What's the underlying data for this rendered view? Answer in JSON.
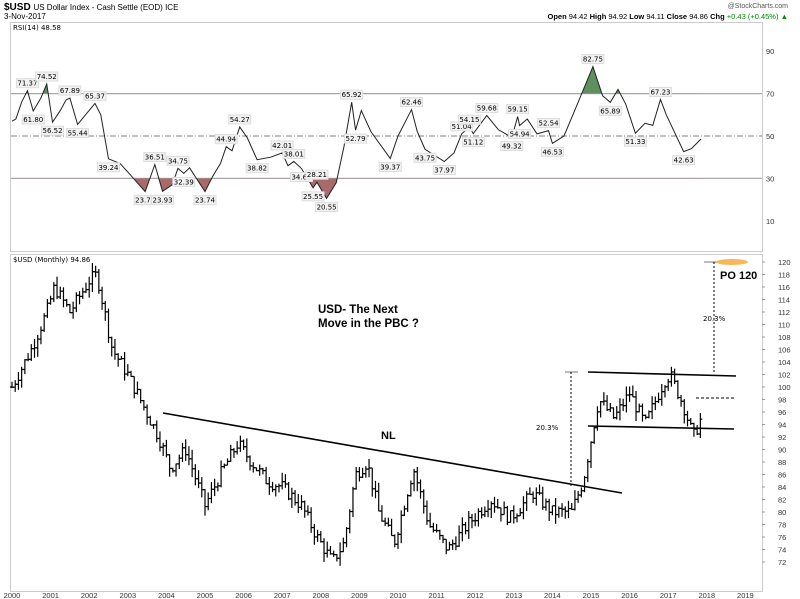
{
  "header": {
    "symbol": "$USD",
    "name": "US Dollar Index - Cash Settle (EOD) ICE",
    "date": "3-Nov-2017",
    "watermark": "@StockCharts.com",
    "open_label": "Open",
    "open": "94.42",
    "high_label": "High",
    "high": "94.92",
    "low_label": "Low",
    "low": "94.11",
    "close_label": "Close",
    "close": "94.86",
    "chg_label": "Chg",
    "chg": "+0.43 (+0.45%)"
  },
  "rsi_legend": "RSI(14) 48.58",
  "price_legend": "$USD (Monthly) 94.86",
  "annotations": {
    "title_line1": "USD- The Next",
    "title_line2": "Move in the PBC ?",
    "neckline": "NL",
    "pct_left": "20.3%",
    "pct_right": "20.3%",
    "target": "PO 120"
  },
  "colors": {
    "overbought": "#5f8f5f",
    "oversold": "#a86a6a",
    "target": "#f5b85a"
  },
  "chart_data": [
    {
      "type": "line",
      "title": "RSI(14)",
      "ylim": [
        0,
        100
      ],
      "yticks": [
        10,
        30,
        50,
        70,
        90
      ],
      "levels": [
        30,
        50,
        70
      ],
      "points": [
        [
          2000.0,
          57
        ],
        [
          2000.1,
          58
        ],
        [
          2000.25,
          66
        ],
        [
          2000.4,
          71.37
        ],
        [
          2000.55,
          61.8
        ],
        [
          2000.75,
          68
        ],
        [
          2000.9,
          74.52
        ],
        [
          2001.05,
          56.52
        ],
        [
          2001.25,
          62
        ],
        [
          2001.4,
          67
        ],
        [
          2001.5,
          67.89
        ],
        [
          2001.7,
          55.44
        ],
        [
          2001.95,
          61
        ],
        [
          2002.15,
          65.37
        ],
        [
          2002.3,
          60
        ],
        [
          2002.5,
          39.24
        ],
        [
          2002.8,
          37
        ],
        [
          2003.1,
          31
        ],
        [
          2003.45,
          23.76
        ],
        [
          2003.7,
          36.51
        ],
        [
          2003.9,
          23.93
        ],
        [
          2004.15,
          27
        ],
        [
          2004.3,
          34.75
        ],
        [
          2004.45,
          32.39
        ],
        [
          2004.6,
          35
        ],
        [
          2005.0,
          23.74
        ],
        [
          2005.2,
          31
        ],
        [
          2005.4,
          37
        ],
        [
          2005.55,
          44.94
        ],
        [
          2005.7,
          43
        ],
        [
          2005.9,
          54.27
        ],
        [
          2006.1,
          49
        ],
        [
          2006.35,
          38.82
        ],
        [
          2006.7,
          40
        ],
        [
          2007.0,
          42.01
        ],
        [
          2007.15,
          36
        ],
        [
          2007.3,
          38.01
        ],
        [
          2007.5,
          34.65
        ],
        [
          2007.8,
          25.55
        ],
        [
          2007.9,
          28.21
        ],
        [
          2008.15,
          20.55
        ],
        [
          2008.4,
          28
        ],
        [
          2008.6,
          45
        ],
        [
          2008.8,
          65.92
        ],
        [
          2008.9,
          52.79
        ],
        [
          2009.05,
          62
        ],
        [
          2009.3,
          52
        ],
        [
          2009.8,
          39.37
        ],
        [
          2010.0,
          50
        ],
        [
          2010.35,
          62.46
        ],
        [
          2010.5,
          52
        ],
        [
          2010.7,
          43.75
        ],
        [
          2011.2,
          37.97
        ],
        [
          2011.45,
          42
        ],
        [
          2011.65,
          51.04
        ],
        [
          2011.85,
          54.15
        ],
        [
          2011.95,
          51.12
        ],
        [
          2012.3,
          59.68
        ],
        [
          2012.6,
          53
        ],
        [
          2012.95,
          49.32
        ],
        [
          2013.1,
          59.15
        ],
        [
          2013.15,
          54.94
        ],
        [
          2013.35,
          58
        ],
        [
          2013.6,
          51
        ],
        [
          2013.9,
          52.54
        ],
        [
          2014.0,
          46.53
        ],
        [
          2014.3,
          50
        ],
        [
          2014.6,
          63
        ],
        [
          2015.05,
          82.75
        ],
        [
          2015.3,
          69
        ],
        [
          2015.5,
          65.89
        ],
        [
          2015.7,
          72.0
        ],
        [
          2015.9,
          65
        ],
        [
          2016.15,
          51.33
        ],
        [
          2016.4,
          56
        ],
        [
          2016.6,
          55
        ],
        [
          2016.8,
          67.23
        ],
        [
          2016.95,
          60
        ],
        [
          2017.4,
          42.63
        ],
        [
          2017.6,
          44
        ],
        [
          2017.85,
          48.58
        ]
      ]
    },
    {
      "type": "ohlc",
      "title": "$USD (Monthly)",
      "ylim": [
        71,
        121
      ],
      "yticks": [
        72,
        74,
        76,
        78,
        80,
        82,
        84,
        86,
        88,
        90,
        92,
        94,
        96,
        98,
        100,
        102,
        104,
        106,
        108,
        110,
        112,
        114,
        116,
        118,
        120
      ],
      "xticks": [
        "2000",
        "2001",
        "2002",
        "2003",
        "2004",
        "2005",
        "2006",
        "2007",
        "2008",
        "2009",
        "2010",
        "2011",
        "2012",
        "2013",
        "2014",
        "2015",
        "2016",
        "2017",
        "2018",
        "2019"
      ],
      "close_keypoints": [
        [
          2000.0,
          100
        ],
        [
          2000.5,
          106
        ],
        [
          2000.9,
          112
        ],
        [
          2001.1,
          116
        ],
        [
          2001.5,
          112
        ],
        [
          2002.0,
          117
        ],
        [
          2002.2,
          118
        ],
        [
          2002.4,
          112
        ],
        [
          2002.6,
          106
        ],
        [
          2003.0,
          102
        ],
        [
          2003.4,
          97
        ],
        [
          2003.8,
          92
        ],
        [
          2004.1,
          87
        ],
        [
          2004.5,
          90
        ],
        [
          2005.0,
          81
        ],
        [
          2005.4,
          86
        ],
        [
          2005.85,
          91
        ],
        [
          2006.2,
          88
        ],
        [
          2006.6,
          85
        ],
        [
          2007.0,
          84
        ],
        [
          2007.5,
          81
        ],
        [
          2007.9,
          76
        ],
        [
          2008.3,
          72
        ],
        [
          2008.6,
          75
        ],
        [
          2008.9,
          86
        ],
        [
          2009.2,
          88
        ],
        [
          2009.5,
          80
        ],
        [
          2009.9,
          75
        ],
        [
          2010.4,
          87
        ],
        [
          2010.8,
          78
        ],
        [
          2011.3,
          74
        ],
        [
          2011.8,
          78
        ],
        [
          2012.4,
          82
        ],
        [
          2012.9,
          79
        ],
        [
          2013.5,
          83
        ],
        [
          2014.0,
          80
        ],
        [
          2014.5,
          80
        ],
        [
          2014.8,
          85
        ],
        [
          2015.2,
          98
        ],
        [
          2015.6,
          95
        ],
        [
          2016.0,
          99
        ],
        [
          2016.4,
          94
        ],
        [
          2016.9,
          101
        ],
        [
          2017.05,
          102
        ],
        [
          2017.4,
          97
        ],
        [
          2017.65,
          92
        ],
        [
          2017.85,
          94.86
        ]
      ]
    }
  ]
}
